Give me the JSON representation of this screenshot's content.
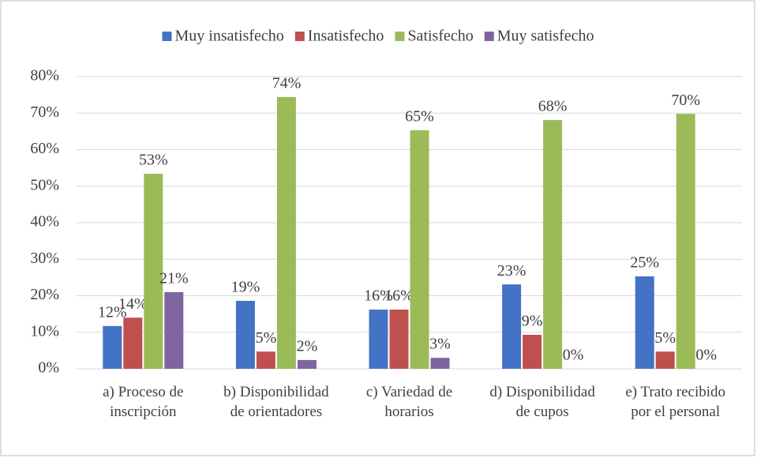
{
  "chart_data": {
    "type": "bar",
    "categories": [
      "a) Proceso de inscripción",
      "b) Disponibilidad de orientadores",
      "c) Variedad de horarios",
      "d) Disponibilidad de cupos",
      "e) Trato recibido por el personal"
    ],
    "series": [
      {
        "name": "Muy insatisfecho",
        "color": "#4472c4",
        "values": [
          11.7,
          18.6,
          16.2,
          23.1,
          25.3
        ],
        "value_labels": [
          "12%",
          "19%",
          "16%",
          "23%",
          "25%"
        ]
      },
      {
        "name": "Insatisfecho",
        "color": "#c0504d",
        "values": [
          14.0,
          4.7,
          16.2,
          9.3,
          4.7
        ],
        "value_labels": [
          "14%",
          "5%",
          "16%",
          "9%",
          "5%"
        ]
      },
      {
        "name": "Satisfecho",
        "color": "#9bbb59",
        "values": [
          53.4,
          74.4,
          65.3,
          68.1,
          69.8
        ],
        "value_labels": [
          "53%",
          "74%",
          "65%",
          "68%",
          "70%"
        ]
      },
      {
        "name": "Muy satisfecho",
        "color": "#8064a2",
        "values": [
          21.0,
          2.4,
          3.0,
          0,
          0
        ],
        "value_labels": [
          "21%",
          "2%",
          "3%",
          "0%",
          "0%"
        ]
      }
    ],
    "ylim": [
      0,
      80
    ],
    "yticks": [
      {
        "value": 0,
        "label": "0%"
      },
      {
        "value": 10,
        "label": "10%"
      },
      {
        "value": 20,
        "label": "20%"
      },
      {
        "value": 30,
        "label": "30%"
      },
      {
        "value": 40,
        "label": "40%"
      },
      {
        "value": 50,
        "label": "50%"
      },
      {
        "value": 60,
        "label": "60%"
      },
      {
        "value": 70,
        "label": "70%"
      },
      {
        "value": 80,
        "label": "80%"
      }
    ],
    "grid": true,
    "legend": "top"
  }
}
